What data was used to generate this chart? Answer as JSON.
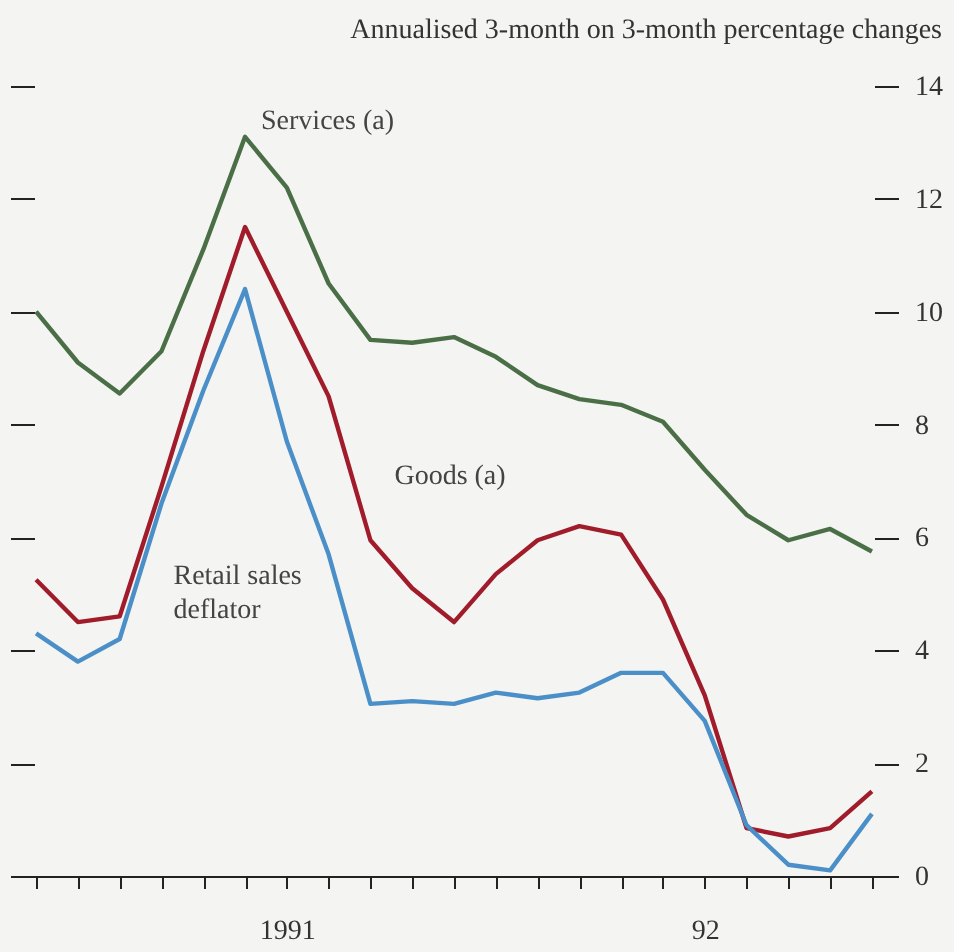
{
  "chart_data": {
    "type": "line",
    "title": "Annualised 3-month on 3-month percentage changes",
    "categories": [
      null,
      null,
      null,
      null,
      null,
      null,
      "1991",
      null,
      null,
      null,
      null,
      null,
      null,
      null,
      null,
      null,
      "92",
      null,
      null,
      null,
      null
    ],
    "series": [
      {
        "name": "Services (a)",
        "color": "#4a6e45",
        "values": [
          10.0,
          9.1,
          8.55,
          9.3,
          11.1,
          13.1,
          12.2,
          10.5,
          9.5,
          9.45,
          9.55,
          9.2,
          8.7,
          8.45,
          8.35,
          8.05,
          7.2,
          6.4,
          5.95,
          6.15,
          5.75
        ]
      },
      {
        "name": "Goods (a)",
        "color": "#a01c2a",
        "values": [
          5.25,
          4.5,
          4.6,
          6.9,
          9.3,
          11.5,
          10.0,
          8.5,
          5.95,
          5.1,
          4.5,
          5.35,
          5.95,
          6.2,
          6.05,
          4.9,
          3.2,
          0.85,
          0.7,
          0.85,
          1.5
        ]
      },
      {
        "name": "Retail sales deflator",
        "color": "#4b8fc9",
        "values": [
          4.3,
          3.8,
          4.2,
          6.6,
          8.6,
          10.4,
          7.7,
          5.7,
          3.05,
          3.1,
          3.05,
          3.25,
          3.15,
          3.25,
          3.6,
          3.6,
          2.75,
          0.9,
          0.2,
          0.1,
          1.1
        ]
      }
    ],
    "ylim": [
      0,
      14
    ],
    "yticks": [
      0,
      2,
      4,
      6,
      8,
      10,
      12,
      14
    ],
    "grid": false,
    "marker": "none",
    "line_style": "solid"
  }
}
